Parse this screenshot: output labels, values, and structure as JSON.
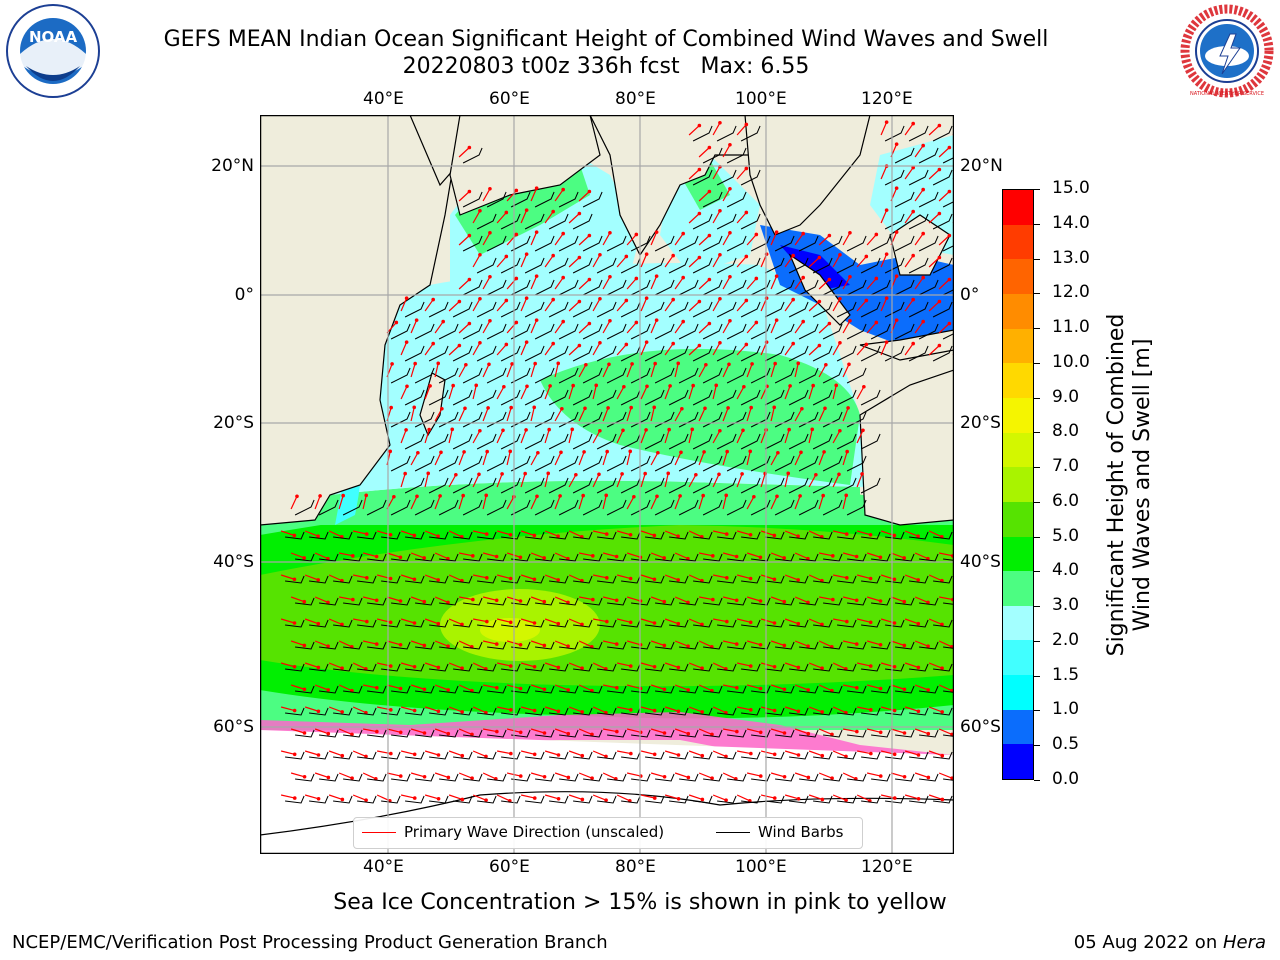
{
  "title_line1": "GEFS MEAN Indian Ocean Significant Height of Combined Wind Waves and Swell",
  "title_line2": "20220803 t00z 336h fcst   Max: 6.55",
  "lon_ticks": [
    "40°E",
    "60°E",
    "80°E",
    "100°E",
    "120°E"
  ],
  "lat_ticks": [
    "20°N",
    "0°",
    "20°S",
    "40°S",
    "60°S"
  ],
  "colorbar": {
    "title_line1": "Significant Height of Combined",
    "title_line2": "Wind Waves and Swell [m]",
    "levels": [
      "0.0",
      "0.5",
      "1.0",
      "1.5",
      "2.0",
      "3.0",
      "4.0",
      "5.0",
      "6.0",
      "7.0",
      "8.0",
      "9.0",
      "10.0",
      "11.0",
      "12.0",
      "13.0",
      "14.0",
      "15.0"
    ],
    "colors": [
      "#0000ff",
      "#0b6dfc",
      "#00ffff",
      "#41ffff",
      "#a3ffff",
      "#4cfd82",
      "#01ef01",
      "#56e301",
      "#a9f300",
      "#d3f700",
      "#f5f500",
      "#ffd900",
      "#ffb000",
      "#ff8c00",
      "#ff6400",
      "#ff3c00",
      "#ff0000"
    ]
  },
  "legend": {
    "wave_direction": "Primary Wave Direction (unscaled)",
    "wind_barbs": "Wind Barbs",
    "wave_color": "#ff0000",
    "barb_color": "#000000"
  },
  "caption": "Sea Ice Concentration > 15% is shown in pink to yellow",
  "footer_left": "NCEP/EMC/Verification Post Processing Product Generation Branch",
  "footer_right_prefix": "05 Aug 2022 on ",
  "footer_right_host": "Hera",
  "logos": {
    "noaa": "NOAA",
    "nws_text": "NATIONAL WEATHER SERVICE"
  }
}
